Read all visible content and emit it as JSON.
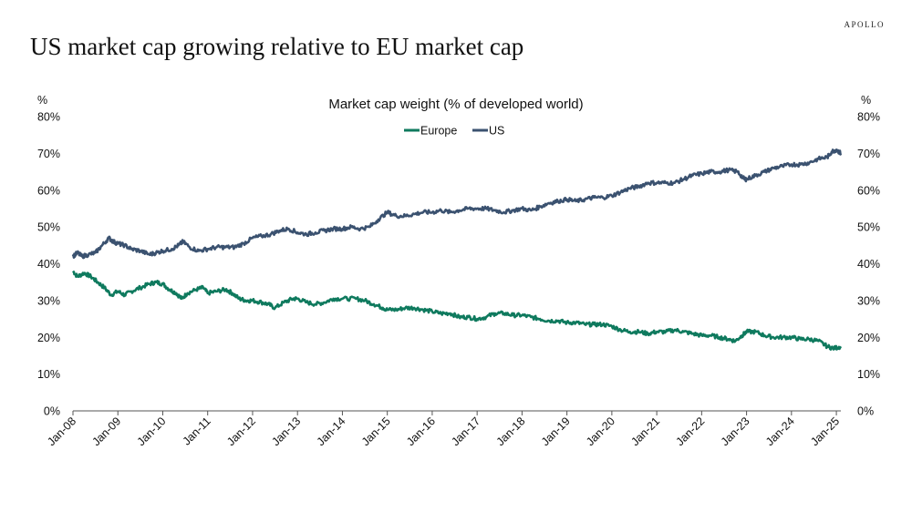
{
  "brand": "APOLLO",
  "title": "US market cap growing relative to EU market cap",
  "chart_data": {
    "type": "line",
    "title": "Market cap weight (% of developed world)",
    "y_left_unit": "%",
    "y_right_unit": "%",
    "ylim": [
      0,
      80
    ],
    "y_ticks": [
      0,
      10,
      20,
      30,
      40,
      50,
      60,
      70,
      80
    ],
    "y_tick_labels": [
      "0%",
      "10%",
      "20%",
      "30%",
      "40%",
      "50%",
      "60%",
      "70%",
      "80%"
    ],
    "x_range": [
      2008.0,
      2025.1
    ],
    "x_tick_labels": [
      "Jan-08",
      "Jan-09",
      "Jan-10",
      "Jan-11",
      "Jan-12",
      "Jan-13",
      "Jan-14",
      "Jan-15",
      "Jan-16",
      "Jan-17",
      "Jan-18",
      "Jan-19",
      "Jan-20",
      "Jan-21",
      "Jan-22",
      "Jan-23",
      "Jan-24",
      "Jan-25"
    ],
    "x_tick_values": [
      2008,
      2009,
      2010,
      2011,
      2012,
      2013,
      2014,
      2015,
      2016,
      2017,
      2018,
      2019,
      2020,
      2021,
      2022,
      2023,
      2024,
      2025
    ],
    "legend_position": "top-center",
    "grid": false,
    "series": [
      {
        "name": "Europe",
        "color": "#0f7a5e",
        "points": [
          [
            2008.0,
            38
          ],
          [
            2008.1,
            36.5
          ],
          [
            2008.25,
            37.5
          ],
          [
            2008.4,
            36.5
          ],
          [
            2008.55,
            35
          ],
          [
            2008.7,
            33.5
          ],
          [
            2008.85,
            31.5
          ],
          [
            2009.0,
            32.5
          ],
          [
            2009.15,
            31.5
          ],
          [
            2009.3,
            32.5
          ],
          [
            2009.5,
            33.5
          ],
          [
            2009.7,
            34.5
          ],
          [
            2009.85,
            35
          ],
          [
            2010.0,
            34.5
          ],
          [
            2010.15,
            33
          ],
          [
            2010.3,
            32
          ],
          [
            2010.42,
            30.5
          ],
          [
            2010.55,
            32
          ],
          [
            2010.75,
            33
          ],
          [
            2010.9,
            33.5
          ],
          [
            2011.0,
            32
          ],
          [
            2011.2,
            32.5
          ],
          [
            2011.4,
            33
          ],
          [
            2011.55,
            32
          ],
          [
            2011.7,
            30.5
          ],
          [
            2011.85,
            30
          ],
          [
            2012.0,
            30
          ],
          [
            2012.2,
            29.5
          ],
          [
            2012.35,
            29
          ],
          [
            2012.5,
            28
          ],
          [
            2012.7,
            29.5
          ],
          [
            2012.9,
            30.5
          ],
          [
            2013.0,
            30.5
          ],
          [
            2013.2,
            29.5
          ],
          [
            2013.4,
            29
          ],
          [
            2013.6,
            29.5
          ],
          [
            2013.8,
            30.5
          ],
          [
            2014.0,
            30.5
          ],
          [
            2014.3,
            30.5
          ],
          [
            2014.5,
            30
          ],
          [
            2014.7,
            29
          ],
          [
            2014.9,
            28
          ],
          [
            2015.0,
            27.5
          ],
          [
            2015.2,
            27.5
          ],
          [
            2015.4,
            28
          ],
          [
            2015.6,
            28
          ],
          [
            2015.8,
            27.5
          ],
          [
            2016.0,
            27
          ],
          [
            2016.2,
            26.5
          ],
          [
            2016.4,
            26.5
          ],
          [
            2016.6,
            25.5
          ],
          [
            2016.8,
            25.5
          ],
          [
            2017.0,
            25
          ],
          [
            2017.2,
            25.5
          ],
          [
            2017.4,
            26.5
          ],
          [
            2017.6,
            26.5
          ],
          [
            2017.8,
            26
          ],
          [
            2018.0,
            26
          ],
          [
            2018.2,
            25.5
          ],
          [
            2018.4,
            25
          ],
          [
            2018.6,
            24.5
          ],
          [
            2018.8,
            24.5
          ],
          [
            2019.0,
            24
          ],
          [
            2019.2,
            24
          ],
          [
            2019.4,
            23.5
          ],
          [
            2019.6,
            23.5
          ],
          [
            2019.8,
            23.5
          ],
          [
            2020.0,
            23
          ],
          [
            2020.2,
            22
          ],
          [
            2020.4,
            21.5
          ],
          [
            2020.6,
            21.5
          ],
          [
            2020.8,
            21
          ],
          [
            2021.0,
            21.5
          ],
          [
            2021.2,
            21.5
          ],
          [
            2021.4,
            22
          ],
          [
            2021.6,
            21.5
          ],
          [
            2021.8,
            21
          ],
          [
            2022.0,
            20.5
          ],
          [
            2022.2,
            20.5
          ],
          [
            2022.4,
            20
          ],
          [
            2022.6,
            19.5
          ],
          [
            2022.75,
            19
          ],
          [
            2022.9,
            20.5
          ],
          [
            2023.0,
            21.5
          ],
          [
            2023.2,
            21.5
          ],
          [
            2023.4,
            20.5
          ],
          [
            2023.6,
            20
          ],
          [
            2023.8,
            20
          ],
          [
            2024.0,
            20
          ],
          [
            2024.2,
            19.5
          ],
          [
            2024.4,
            19.5
          ],
          [
            2024.6,
            19
          ],
          [
            2024.8,
            17.5
          ],
          [
            2024.95,
            17
          ],
          [
            2025.1,
            17.5
          ]
        ]
      },
      {
        "name": "US",
        "color": "#3b5270",
        "points": [
          [
            2008.0,
            42
          ],
          [
            2008.1,
            43
          ],
          [
            2008.2,
            42
          ],
          [
            2008.35,
            42.5
          ],
          [
            2008.5,
            43
          ],
          [
            2008.65,
            45
          ],
          [
            2008.8,
            47
          ],
          [
            2008.9,
            46
          ],
          [
            2009.0,
            45.5
          ],
          [
            2009.15,
            45
          ],
          [
            2009.3,
            44
          ],
          [
            2009.5,
            43.5
          ],
          [
            2009.7,
            42.5
          ],
          [
            2009.85,
            43
          ],
          [
            2010.0,
            43.5
          ],
          [
            2010.2,
            44
          ],
          [
            2010.35,
            45
          ],
          [
            2010.45,
            46
          ],
          [
            2010.6,
            44.5
          ],
          [
            2010.8,
            43.5
          ],
          [
            2011.0,
            44
          ],
          [
            2011.2,
            44.5
          ],
          [
            2011.4,
            44.5
          ],
          [
            2011.6,
            44.5
          ],
          [
            2011.8,
            45.5
          ],
          [
            2012.0,
            47
          ],
          [
            2012.2,
            47.5
          ],
          [
            2012.4,
            48
          ],
          [
            2012.6,
            49
          ],
          [
            2012.8,
            49.5
          ],
          [
            2013.0,
            48.5
          ],
          [
            2013.2,
            48
          ],
          [
            2013.4,
            48.5
          ],
          [
            2013.6,
            49
          ],
          [
            2013.8,
            49.5
          ],
          [
            2014.0,
            49.5
          ],
          [
            2014.2,
            50
          ],
          [
            2014.4,
            49.5
          ],
          [
            2014.6,
            50
          ],
          [
            2014.8,
            52
          ],
          [
            2015.0,
            54
          ],
          [
            2015.2,
            53
          ],
          [
            2015.4,
            53
          ],
          [
            2015.6,
            53.5
          ],
          [
            2015.8,
            54
          ],
          [
            2016.0,
            54
          ],
          [
            2016.2,
            54.5
          ],
          [
            2016.4,
            54
          ],
          [
            2016.6,
            54.5
          ],
          [
            2016.8,
            55
          ],
          [
            2017.0,
            55
          ],
          [
            2017.2,
            55
          ],
          [
            2017.4,
            54.5
          ],
          [
            2017.6,
            54
          ],
          [
            2017.8,
            54.5
          ],
          [
            2018.0,
            55
          ],
          [
            2018.2,
            54.5
          ],
          [
            2018.4,
            55.5
          ],
          [
            2018.6,
            56.5
          ],
          [
            2018.8,
            57
          ],
          [
            2019.0,
            57.5
          ],
          [
            2019.2,
            57
          ],
          [
            2019.4,
            57.5
          ],
          [
            2019.6,
            58
          ],
          [
            2019.8,
            58
          ],
          [
            2020.0,
            58.5
          ],
          [
            2020.2,
            59.5
          ],
          [
            2020.4,
            60.5
          ],
          [
            2020.6,
            61
          ],
          [
            2020.8,
            62
          ],
          [
            2021.0,
            62
          ],
          [
            2021.2,
            62
          ],
          [
            2021.4,
            62
          ],
          [
            2021.6,
            63
          ],
          [
            2021.8,
            64
          ],
          [
            2022.0,
            64.5
          ],
          [
            2022.2,
            65
          ],
          [
            2022.4,
            65
          ],
          [
            2022.6,
            65.5
          ],
          [
            2022.8,
            65
          ],
          [
            2022.95,
            63
          ],
          [
            2023.0,
            63
          ],
          [
            2023.2,
            64
          ],
          [
            2023.4,
            65
          ],
          [
            2023.6,
            66
          ],
          [
            2023.8,
            66.5
          ],
          [
            2024.0,
            67
          ],
          [
            2024.2,
            67
          ],
          [
            2024.4,
            67.5
          ],
          [
            2024.6,
            68.5
          ],
          [
            2024.8,
            69
          ],
          [
            2024.9,
            70.5
          ],
          [
            2025.0,
            71
          ],
          [
            2025.1,
            70
          ]
        ]
      }
    ]
  }
}
